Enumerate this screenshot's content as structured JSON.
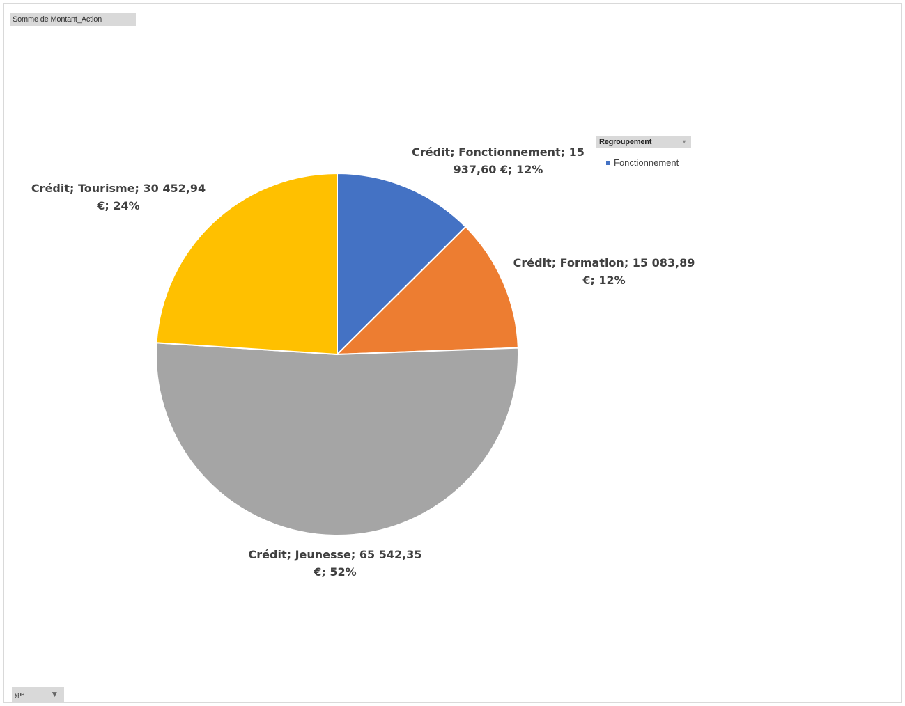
{
  "field_buttons": {
    "value_field": "Somme de Montant_Action",
    "legend_field": "Regroupement",
    "axis_field": "ype"
  },
  "legend": {
    "entries": [
      {
        "label": "Fonctionnement",
        "color": "#4472C4"
      }
    ]
  },
  "chart_data": {
    "type": "pie",
    "title": "",
    "categories": [
      "Crédit; Fonctionnement",
      "Crédit; Formation",
      "Crédit; Jeunesse",
      "Crédit; Tourisme"
    ],
    "series": [
      {
        "values": [
          15937.6,
          15083.89,
          65542.35,
          30452.94
        ]
      }
    ],
    "colors": [
      "#4472C4",
      "#ED7D31",
      "#A5A5A5",
      "#FFC000"
    ],
    "data_labels": [
      {
        "line1": "Crédit; Fonctionnement; 15",
        "line2": "937,60 €; 12%"
      },
      {
        "line1": "Crédit; Formation; 15 083,89",
        "line2": "€; 12%"
      },
      {
        "line1": "Crédit; Jeunesse; 65 542,35",
        "line2": "€; 52%"
      },
      {
        "line1": "Crédit; Tourisme; 30 452,94",
        "line2": "€; 24%"
      }
    ],
    "legend_placement": "top-right"
  }
}
